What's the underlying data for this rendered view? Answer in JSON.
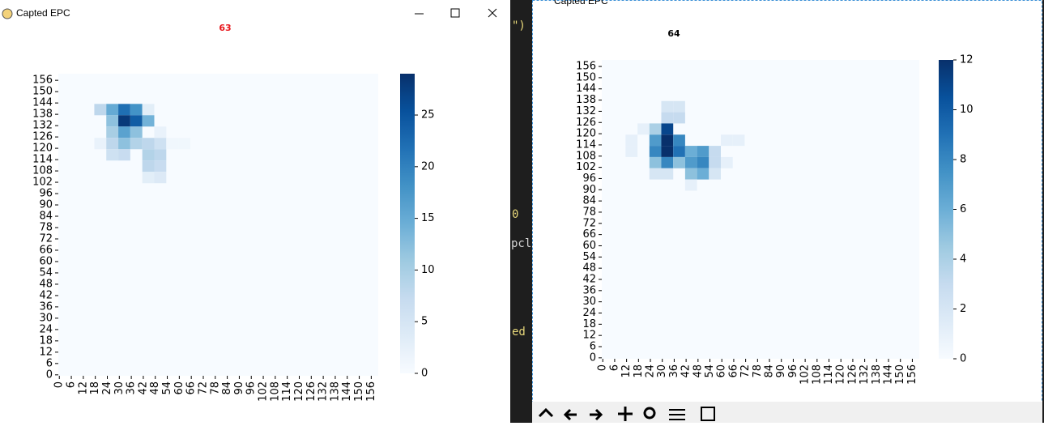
{
  "windows": [
    {
      "title": "Capted EPC"
    },
    {
      "title": "Capted EPC"
    }
  ],
  "background_text": [
    "\")",
    "0",
    "pcl",
    "ed"
  ],
  "chart_data": [
    {
      "type": "heatmap",
      "title": "63",
      "title_color": "#e8171c",
      "colormap": "Blues",
      "xlim": [
        -0.5,
        159.5
      ],
      "ylim": [
        -0.5,
        159.5
      ],
      "xticks": [
        0,
        6,
        12,
        18,
        24,
        30,
        36,
        42,
        48,
        54,
        60,
        66,
        72,
        78,
        84,
        90,
        96,
        102,
        108,
        114,
        120,
        126,
        132,
        138,
        144,
        150,
        156
      ],
      "yticks": [
        0,
        6,
        12,
        18,
        24,
        30,
        36,
        42,
        48,
        54,
        60,
        66,
        72,
        78,
        84,
        90,
        96,
        102,
        108,
        114,
        120,
        126,
        132,
        138,
        144,
        150,
        156
      ],
      "colorbar_lim": [
        0,
        29
      ],
      "colorbar_ticks": [
        0,
        5,
        10,
        15,
        20,
        25
      ],
      "cells": {
        "x": [
          18,
          24,
          30,
          36,
          42,
          24,
          30,
          36,
          42,
          24,
          30,
          36,
          48,
          18,
          24,
          30,
          36,
          42,
          48,
          54,
          60,
          24,
          30,
          42,
          48,
          42,
          48,
          42,
          48
        ],
        "y": [
          138,
          138,
          138,
          138,
          138,
          132,
          132,
          132,
          132,
          126,
          126,
          126,
          126,
          120,
          120,
          120,
          120,
          120,
          120,
          120,
          120,
          114,
          114,
          114,
          114,
          108,
          108,
          102,
          102
        ],
        "values": [
          8,
          15,
          22,
          18,
          3,
          12,
          28,
          24,
          14,
          10,
          16,
          12,
          2,
          2,
          8,
          12,
          9,
          8,
          6,
          1,
          1,
          6,
          7,
          9,
          8,
          8,
          7,
          3,
          4
        ]
      }
    },
    {
      "type": "heatmap",
      "title": "64",
      "title_color": "#000000",
      "colormap": "Blues",
      "xlim": [
        -0.5,
        159.5
      ],
      "ylim": [
        -0.5,
        159.5
      ],
      "xticks": [
        0,
        6,
        12,
        18,
        24,
        30,
        36,
        42,
        48,
        54,
        60,
        66,
        72,
        78,
        84,
        90,
        96,
        102,
        108,
        114,
        120,
        126,
        132,
        138,
        144,
        150,
        156
      ],
      "yticks": [
        0,
        6,
        12,
        18,
        24,
        30,
        36,
        42,
        48,
        54,
        60,
        66,
        72,
        78,
        84,
        90,
        96,
        102,
        108,
        114,
        120,
        126,
        132,
        138,
        144,
        150,
        156
      ],
      "colorbar_lim": [
        0,
        12
      ],
      "colorbar_ticks": [
        0,
        2,
        4,
        6,
        8,
        10,
        12
      ],
      "cells": {
        "x": [
          30,
          36,
          30,
          36,
          18,
          24,
          30,
          12,
          24,
          30,
          36,
          60,
          66,
          12,
          24,
          30,
          36,
          42,
          48,
          54,
          24,
          30,
          36,
          42,
          48,
          54,
          60,
          24,
          30,
          42,
          48,
          54,
          42
        ],
        "y": [
          132,
          132,
          126,
          126,
          120,
          120,
          120,
          114,
          114,
          114,
          114,
          114,
          114,
          108,
          108,
          108,
          108,
          108,
          108,
          108,
          102,
          102,
          102,
          102,
          102,
          102,
          102,
          96,
          96,
          96,
          96,
          96,
          90
        ],
        "values": [
          2,
          2,
          3,
          3,
          1,
          4,
          11,
          1,
          7,
          12,
          8,
          1,
          1,
          1,
          8,
          12,
          9,
          6,
          7,
          3,
          5,
          8,
          5,
          7,
          8,
          3,
          1,
          2,
          2,
          5,
          6,
          2,
          1
        ]
      }
    }
  ]
}
